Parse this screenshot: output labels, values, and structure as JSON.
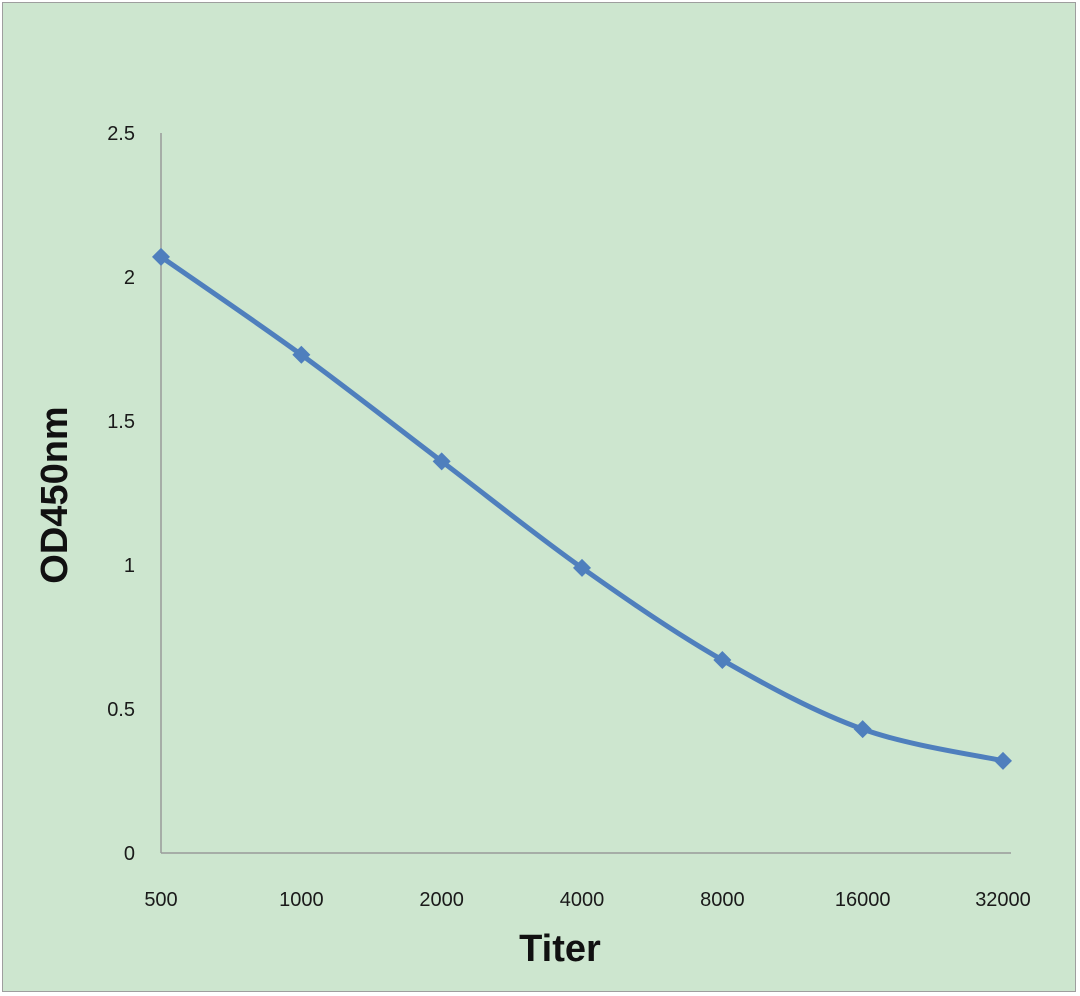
{
  "chart_data": {
    "type": "line",
    "title": "",
    "xlabel": "Titer",
    "ylabel": "OD450nm",
    "categories": [
      "500",
      "1000",
      "2000",
      "4000",
      "8000",
      "16000",
      "32000"
    ],
    "series": [
      {
        "values": [
          2.07,
          1.73,
          1.36,
          0.99,
          0.67,
          0.43,
          0.32
        ]
      }
    ],
    "ylim": [
      0,
      2.5
    ],
    "yticks": [
      "0",
      "0.5",
      "1",
      "1.5",
      "2",
      "2.5"
    ],
    "grid": false,
    "legend": "none",
    "colors": {
      "line": "#4f7fbd",
      "background": "#cde6cf",
      "axis": "#9a9a9a"
    },
    "marker": "diamond"
  }
}
